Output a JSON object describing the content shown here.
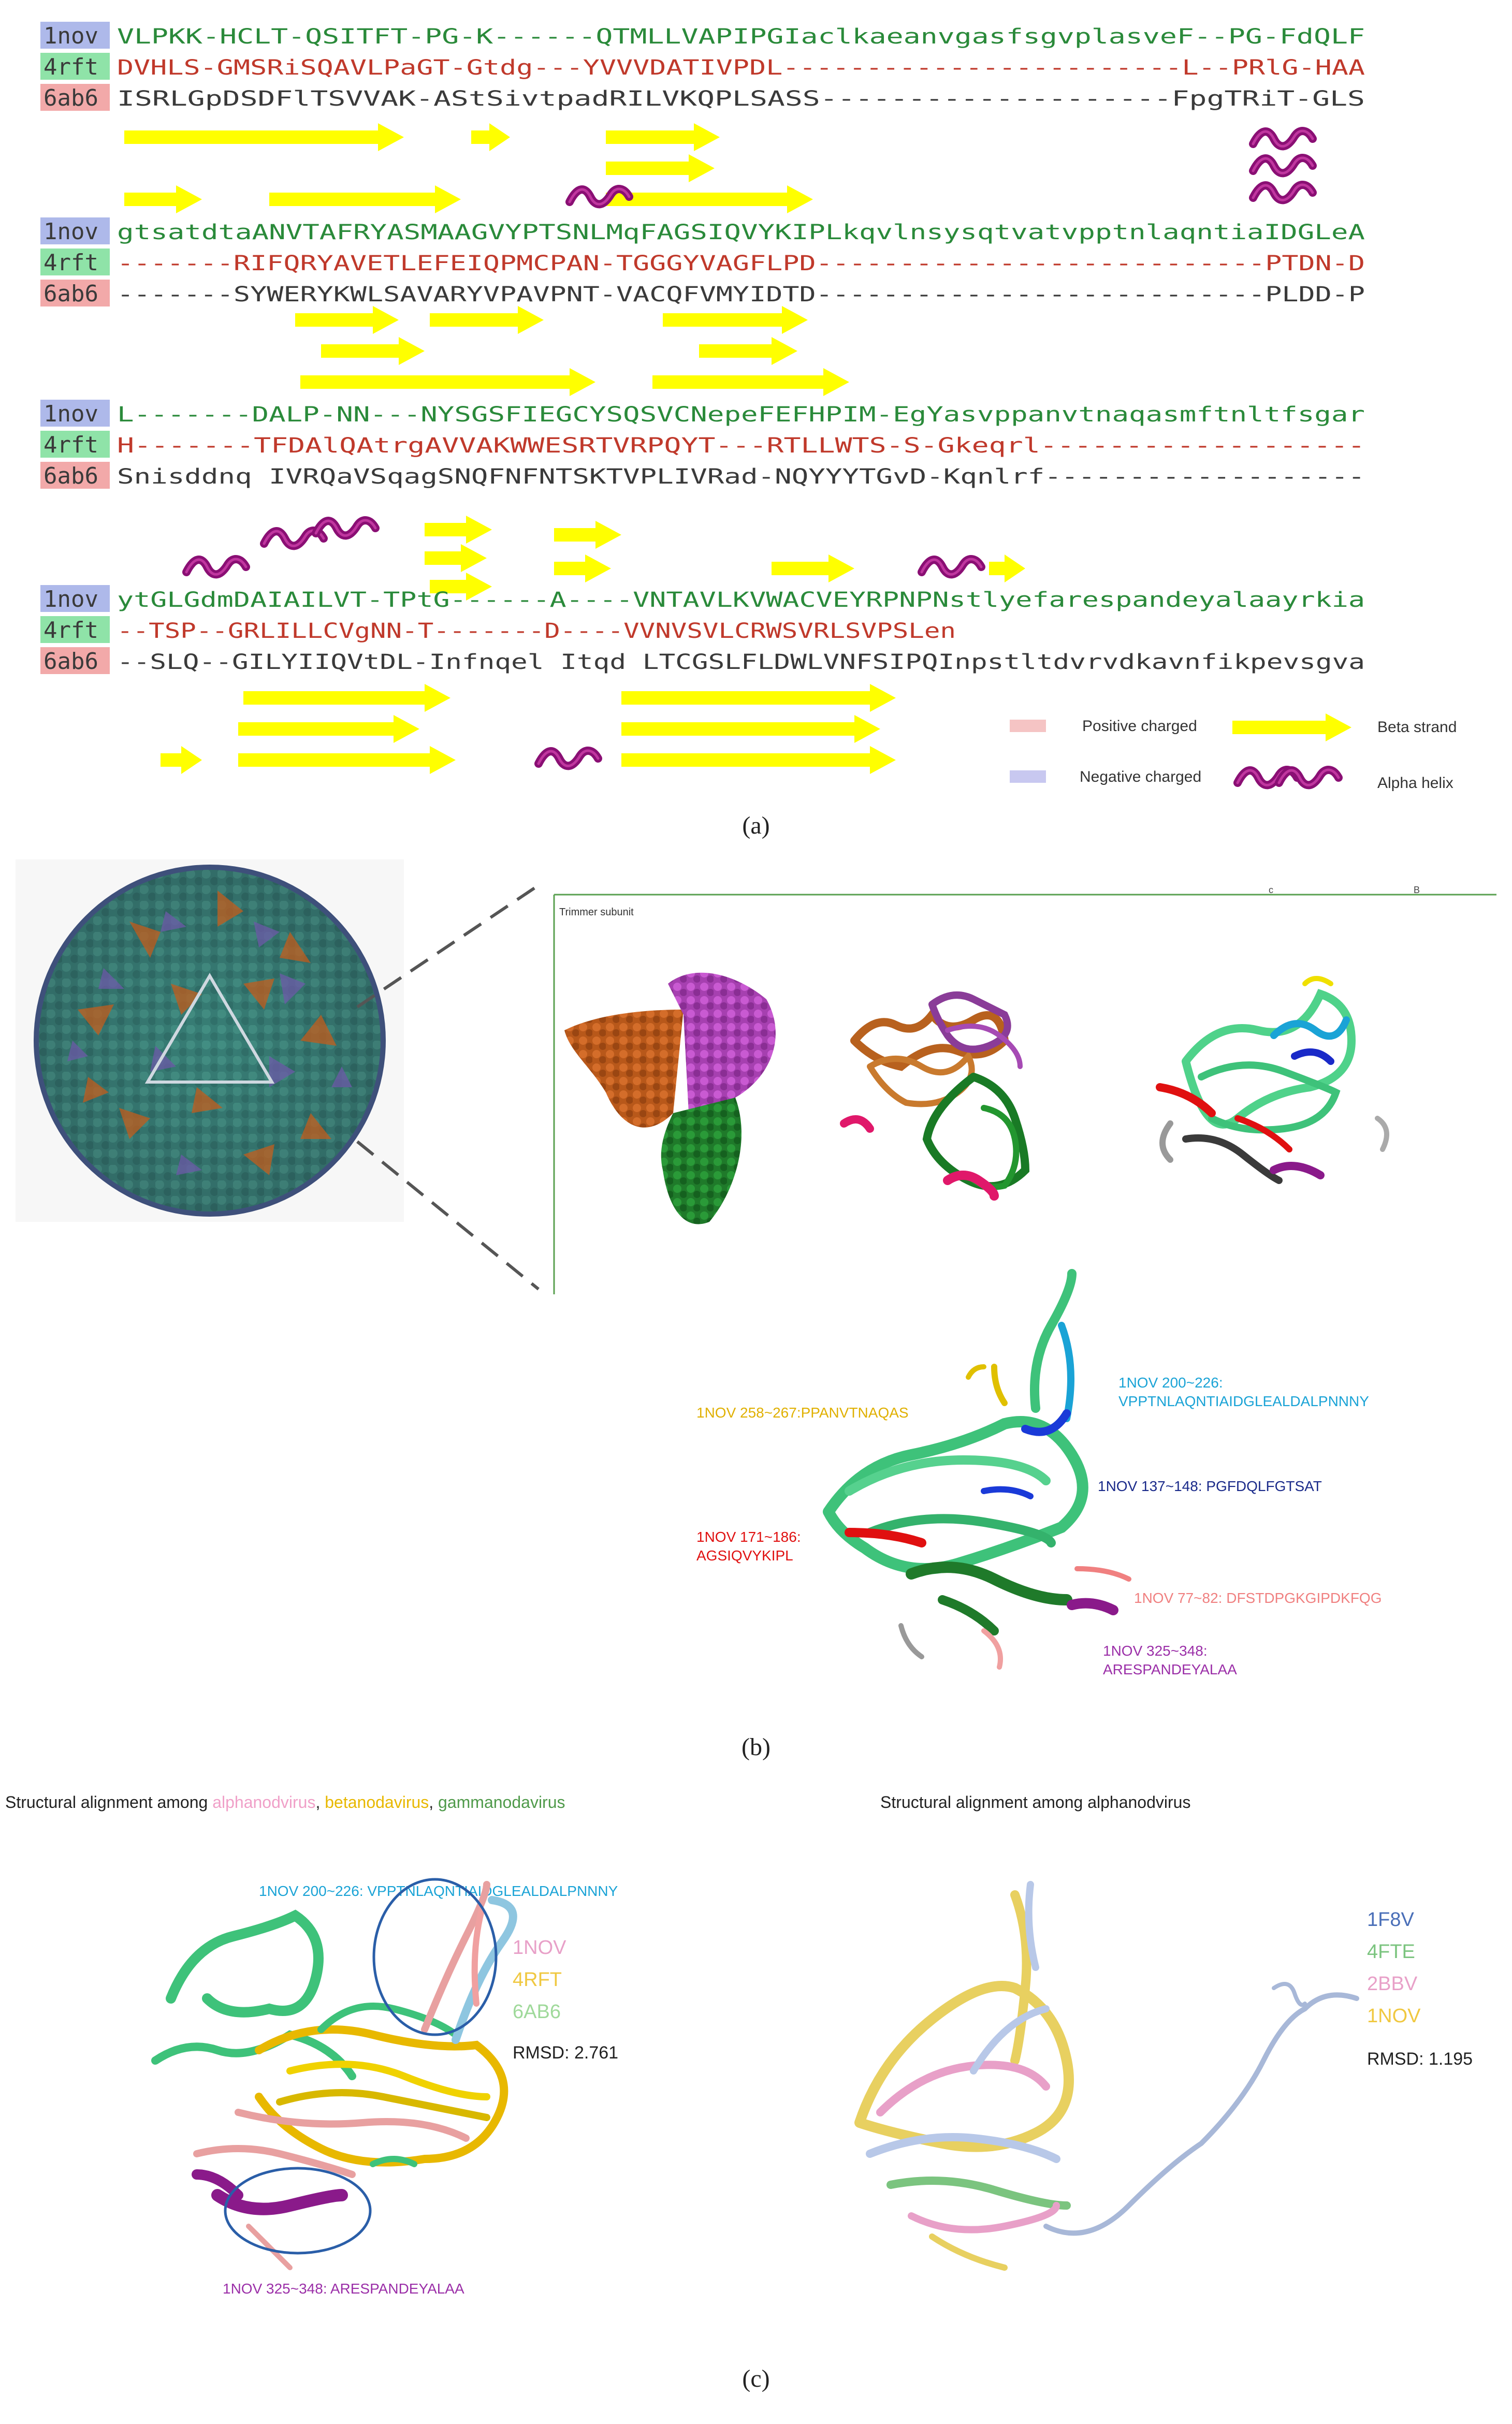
{
  "panel_a": {
    "label": "(a)",
    "labels": [
      "1nov",
      "4rft",
      "6ab6"
    ],
    "label_colors": [
      "#aeb9ea",
      "#8fe3a8",
      "#f2a9a9"
    ],
    "blocks": [
      [
        "VLPKK-HCLT-QSITFT-PG-K------QTMLLVAPIPGIaclkaeanvgasfsgvplasveF--PG-FdQLF",
        "DVHLS-GMSRiSQAVLPaGT-Gtdg---YVVVDATIVPDL------------------------L--PRlG-HAA",
        "ISRLGpDSDFlTSVVAK-AStSivtpadRILVKQPLSASS--------------------FpgTRiT-GLS"
      ],
      [
        "gtsatdtaANVTAFRYASMAAGVYPTSNLMqFAGSIQVYKIPLkqvlnsysqtvatvpptnlaqntiaIDGLeA",
        "-------RIFQRYAVETLEFEIQPMCPAN-TGGGYVAGFLPD---------------------------PTDN-D",
        "-------SYWERYKWLSAVARYVPAVPNT-VACQFVMYIDTD---------------------------PLDD-P"
      ],
      [
        "L-------DALP-NN---NYSGSFIEGCYSQSVCNepeFEFHPIM-EgYasvppanvtnaqasmftnltfsgar",
        "H-------TFDAlQAtrgAVVAKWWESRTVRPQYT---RTLLWTS-S-Gkeqrl-------------------",
        "Snisddnq IVRQaVSqagSNQFNFNTSKTVPLIVRad-NQYYYTGvD-Kqnlrf-------------------"
      ],
      [
        "ytGLGdmDAIAILVT-TPtG------A----VNTAVLKVWACVEYRPNPNstlyefarespandeyalaayrkia",
        "--TSP--GRLILLCVgNN-T-------D----VVNVSVLCRWSVRLSVPSLen",
        "--SLQ--GILYIIQVtDL-Infnqel Itqd LTCGSLFLDWLVNFSIPQInpstltdvrvdkavnfikpevsgva"
      ]
    ],
    "legend": {
      "positive": "Positive charged",
      "negative": "Negative charged",
      "beta": "Beta strand",
      "alpha": "Alpha helix"
    }
  },
  "panel_b": {
    "label": "(b)",
    "inset_title": "Trimmer subunit",
    "corner_c": "c",
    "corner_b": "B",
    "annotations": [
      {
        "text": "1NOV 200~226:",
        "text2": "VPPTNLAQNTIAIDGLEALDALPNNNY",
        "color": "#1aa3d6"
      },
      {
        "text": "1NOV 258~267:PPANVTNAQAS",
        "color": "#e0b000"
      },
      {
        "text": "1NOV 137~148: PGFDQLFGTSAT",
        "color": "#1a2a8a"
      },
      {
        "text": "1NOV 171~186:",
        "text2": "AGSIQVYKIPL",
        "color": "#e01010"
      },
      {
        "text": "1NOV 77~82: DFSTDPGKGIPDKFQG",
        "color": "#f08080"
      },
      {
        "text": "1NOV 325~348:",
        "text2": "ARESPANDEYALAA",
        "color": "#9b2fa8"
      }
    ]
  },
  "panel_c": {
    "label": "(c)",
    "left_title_prefix": "Structural alignment among ",
    "left_title_alpha": "alphanodvirus",
    "left_title_sep1": ", ",
    "left_title_beta": "betanodavirus",
    "left_title_sep2": ", ",
    "left_title_gamma": "gammanodavirus",
    "right_title": "Structural alignment among alphanodvirus",
    "left_top_annotation": "1NOV 200~226: VPPTNLAQNTIAIDGLEALDALPNNNY",
    "left_bottom_annotation": "1NOV 325~348: ARESPANDEYALAA",
    "left_legend": [
      "1NOV",
      "4RFT",
      "6AB6"
    ],
    "left_legend_colors": [
      "#e8a0c8",
      "#f0c840",
      "#9fd99a"
    ],
    "left_rmsd": "RMSD: 2.761",
    "right_legend": [
      "1F8V",
      "4FTE",
      "2BBV",
      "1NOV"
    ],
    "right_legend_colors": [
      "#4a6fb8",
      "#7bc47f",
      "#e8a0c8",
      "#f0c840"
    ],
    "right_rmsd": "RMSD: 1.195"
  }
}
